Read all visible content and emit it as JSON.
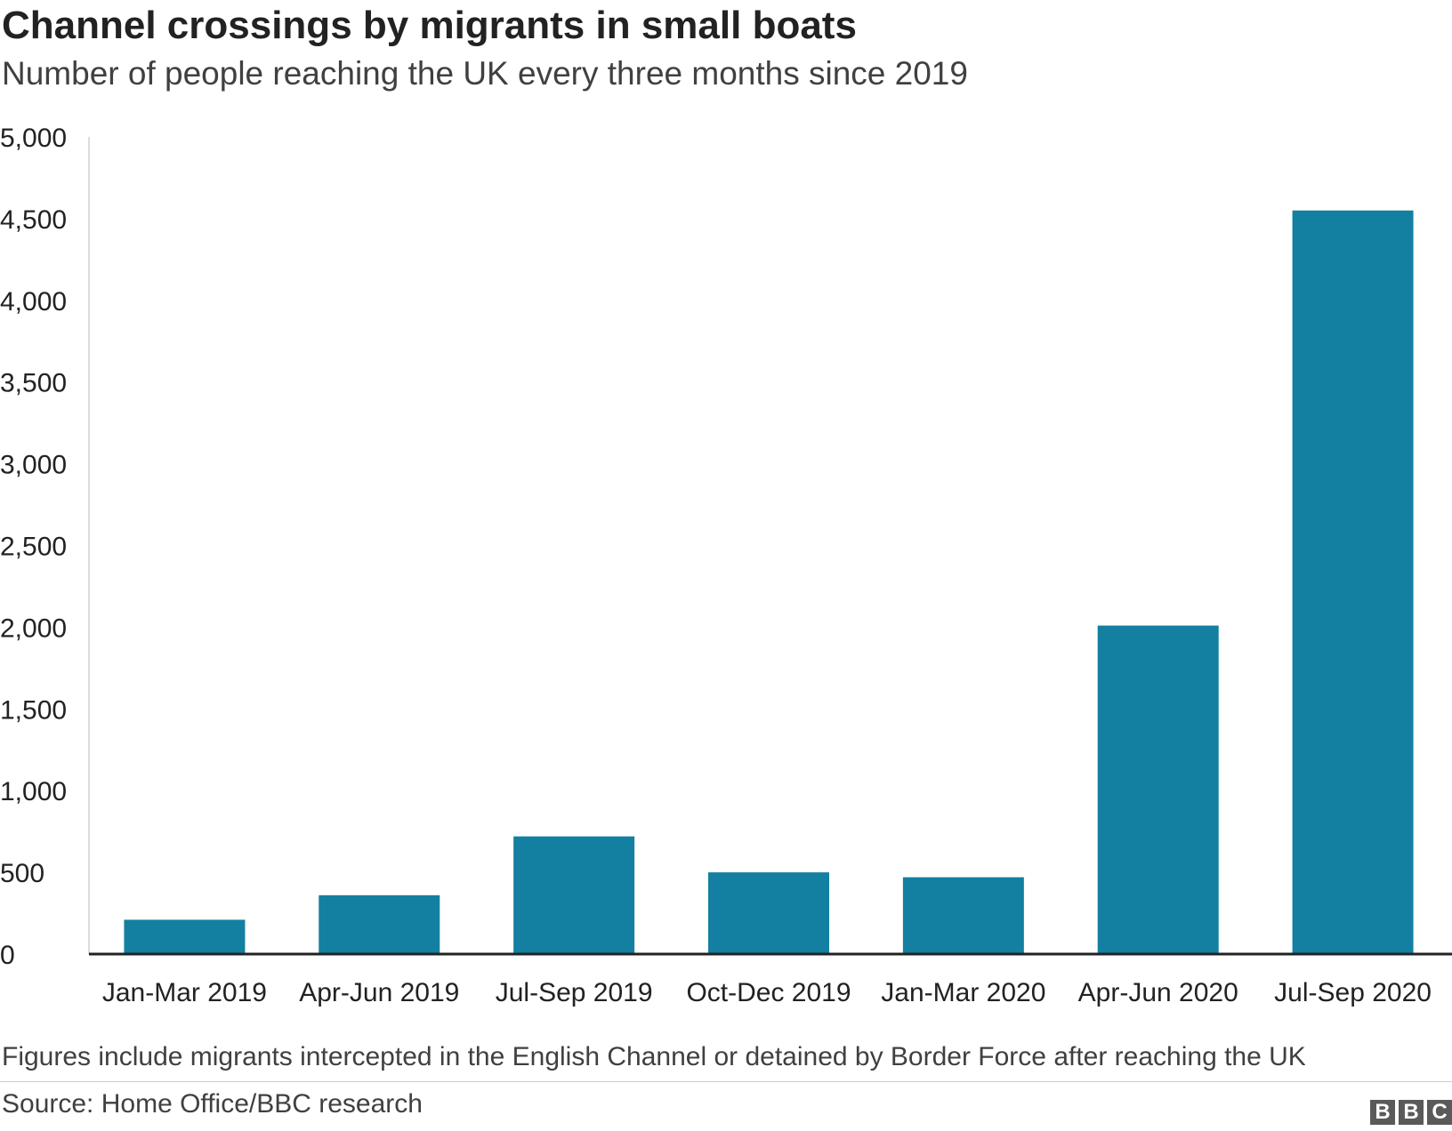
{
  "chart_data": {
    "type": "bar",
    "title": "Channel crossings by migrants in small boats",
    "subtitle": "Number of people reaching the UK every three months since 2019",
    "categories": [
      "Jan-Mar 2019",
      "Apr-Jun 2019",
      "Jul-Sep 2019",
      "Oct-Dec 2019",
      "Jan-Mar 2020",
      "Apr-Jun 2020",
      "Jul-Sep 2020"
    ],
    "values": [
      210,
      360,
      720,
      500,
      470,
      2010,
      4550
    ],
    "ylim": [
      0,
      5000
    ],
    "yticks": [
      0,
      500,
      1000,
      1500,
      2000,
      2500,
      3000,
      3500,
      4000,
      4500,
      5000
    ],
    "ytick_labels": [
      "0",
      "500",
      "1,000",
      "1,500",
      "2,000",
      "2,500",
      "3,000",
      "3,500",
      "4,000",
      "4,500",
      "5,000"
    ],
    "xlabel": "",
    "ylabel": "",
    "grid": false,
    "bar_color": "#1380A1"
  },
  "note": "Figures include migrants intercepted in the English Channel or detained by Border Force after reaching the UK",
  "source": "Source: Home Office/BBC research",
  "logo": {
    "letters": [
      "B",
      "B",
      "C"
    ]
  }
}
